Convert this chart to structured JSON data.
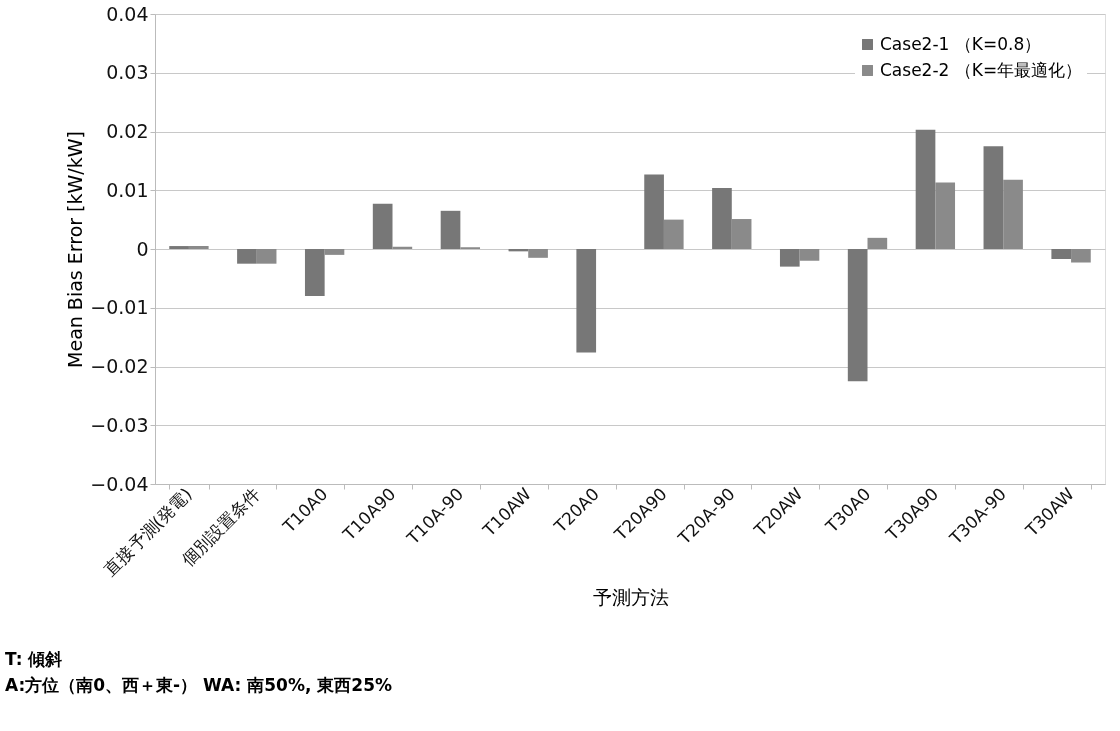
{
  "chart_data": {
    "type": "bar",
    "xlabel": "予測方法",
    "ylabel": "Mean Bias Error [kW/kW]",
    "categories": [
      "直接予測(発電)",
      "個別設置条件",
      "T10A0",
      "T10A90",
      "T10A-90",
      "T10AW",
      "T20A0",
      "T20A90",
      "T20A-90",
      "T20AW",
      "T30A0",
      "T30A90",
      "T30A-90",
      "T30AW"
    ],
    "series": [
      {
        "name": "Case2-1 （K=0.8）",
        "color": "#777777",
        "values": [
          0.0005,
          -0.0025,
          -0.008,
          0.0077,
          0.0065,
          -0.0004,
          -0.0176,
          0.0127,
          0.0104,
          -0.003,
          -0.0225,
          0.0203,
          0.0175,
          -0.0017
        ]
      },
      {
        "name": "Case2-2 （K=年最適化）",
        "color": "#8a8a8a",
        "values": [
          0.0005,
          -0.0025,
          -0.001,
          0.0004,
          0.0003,
          -0.0015,
          0,
          0.005,
          0.0051,
          -0.002,
          0.0019,
          0.0113,
          0.0118,
          -0.0023
        ]
      }
    ],
    "ylim": [
      -0.04,
      0.04
    ],
    "yticks": [
      -0.04,
      -0.03,
      -0.02,
      -0.01,
      0,
      0.01,
      0.02,
      0.03,
      0.04
    ],
    "grid": "y",
    "legend": "top right",
    "annotations": [
      "T: 傾斜",
      "A:方位（南0、西＋東-） WA: 南50%, 東西25%"
    ]
  }
}
